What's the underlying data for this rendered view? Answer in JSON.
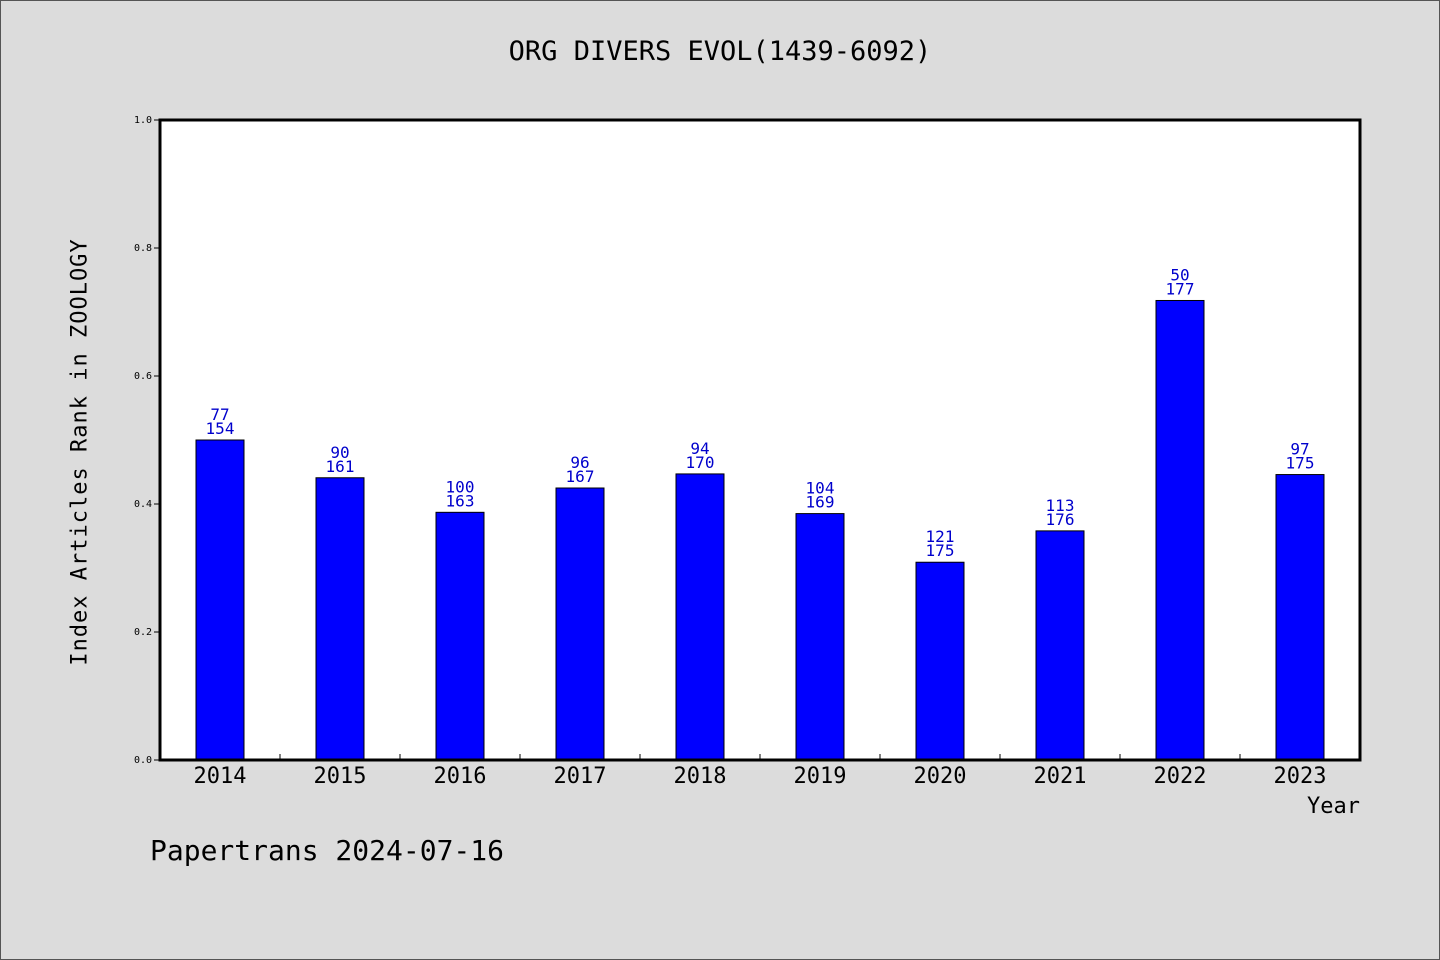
{
  "chart_data": {
    "type": "bar",
    "title": "ORG DIVERS EVOL(1439-6092)",
    "xlabel": "Year",
    "ylabel": "Index Articles Rank in ZOOLOGY",
    "ylim": [
      0,
      1.0
    ],
    "yticks": [
      "0.0",
      "0.2",
      "0.4",
      "0.6",
      "0.8",
      "1.0"
    ],
    "categories": [
      "2014",
      "2015",
      "2016",
      "2017",
      "2018",
      "2019",
      "2020",
      "2021",
      "2022",
      "2023"
    ],
    "values": [
      0.5,
      0.441,
      0.387,
      0.425,
      0.447,
      0.385,
      0.309,
      0.358,
      0.718,
      0.446
    ],
    "ranks": [
      "77",
      "90",
      "100",
      "96",
      "94",
      "104",
      "121",
      "113",
      "50",
      "97"
    ],
    "totals": [
      "154",
      "161",
      "163",
      "167",
      "170",
      "169",
      "175",
      "176",
      "177",
      "175"
    ],
    "bar_color": "#0000ff",
    "label_color": "#0000cc",
    "grid": false,
    "legend": "none"
  },
  "footer": "Papertrans 2024-07-16"
}
